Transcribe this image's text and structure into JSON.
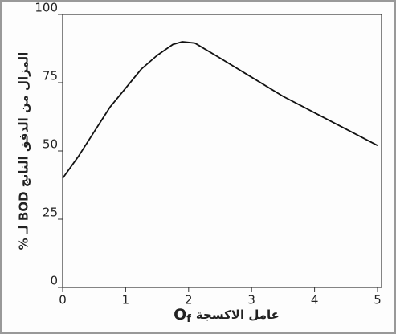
{
  "chart_data": {
    "type": "line",
    "y_label": "% لـ BOD المزال من الدفق الناتج",
    "x_label_text": "عامل الاكسجة",
    "x_label_symbol": "O",
    "x_label_subscript": "f",
    "x": [
      0,
      0.25,
      0.5,
      0.75,
      1,
      1.25,
      1.5,
      1.75,
      1.9,
      2.1,
      2.5,
      3,
      3.5,
      4,
      4.5,
      5
    ],
    "series": [
      {
        "color": "#111111",
        "values": [
          40,
          48,
          57,
          66,
          73,
          80,
          85,
          89,
          90,
          89.5,
          84,
          77,
          70,
          64,
          58,
          52
        ]
      }
    ],
    "xlim": [
      0,
      5
    ],
    "xticks": [
      0,
      1,
      2,
      3,
      4,
      5
    ],
    "ylim": [
      0,
      100
    ],
    "yticks": [
      0,
      25,
      50,
      75,
      100
    ]
  }
}
